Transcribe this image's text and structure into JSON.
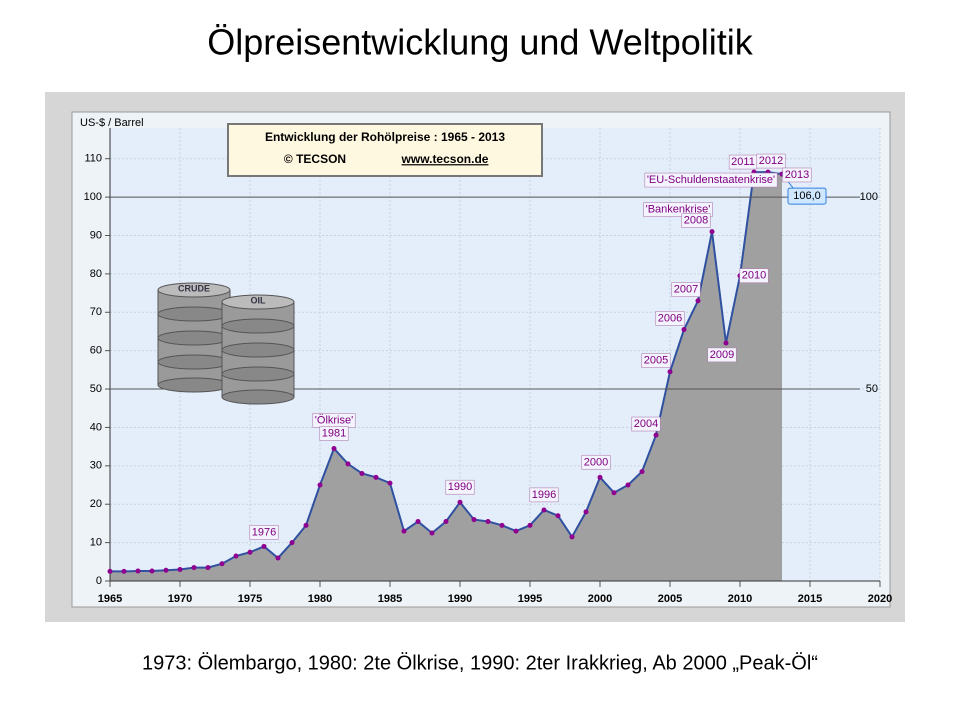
{
  "slide": {
    "title": "Ölpreisentwicklung und Weltpolitik",
    "caption": "1973: Ölembargo, 1980: 2te Ölkrise, 1990: 2ter Irakkrieg, Ab 2000 „Peak-Öl“"
  },
  "chart_data": {
    "type": "area",
    "title": "Entwicklung der Rohölpreise :  1965 - 2013",
    "subtitle": [
      "© TECSON",
      "www.tecson.de"
    ],
    "y_label": "US-$ / Barrel",
    "image_labels": [
      "CRUDE",
      "OIL"
    ],
    "x": [
      1965,
      1966,
      1967,
      1968,
      1969,
      1970,
      1971,
      1972,
      1973,
      1974,
      1975,
      1976,
      1977,
      1978,
      1979,
      1980,
      1981,
      1982,
      1983,
      1984,
      1985,
      1986,
      1987,
      1988,
      1989,
      1990,
      1991,
      1992,
      1993,
      1994,
      1995,
      1996,
      1997,
      1998,
      1999,
      2000,
      2001,
      2002,
      2003,
      2004,
      2005,
      2006,
      2007,
      2008,
      2009,
      2010,
      2011,
      2012,
      2013
    ],
    "values": [
      2.5,
      2.5,
      2.6,
      2.6,
      2.8,
      3.0,
      3.5,
      3.5,
      4.5,
      6.5,
      7.5,
      9,
      6,
      10,
      14.5,
      25,
      34.5,
      30.5,
      28,
      27,
      25.5,
      13,
      15.5,
      12.5,
      15.5,
      20.5,
      16,
      15.5,
      14.5,
      13,
      14.5,
      18.5,
      17,
      11.5,
      18,
      27,
      23,
      25,
      28.5,
      38,
      54.5,
      65.5,
      73,
      91,
      62,
      79.5,
      106.5,
      106.5,
      106
    ],
    "value_labels": [
      null,
      null,
      null,
      null,
      null,
      null,
      null,
      null,
      null,
      null,
      null,
      null,
      null,
      null,
      null,
      null,
      null,
      null,
      null,
      null,
      null,
      null,
      null,
      null,
      null,
      null,
      null,
      null,
      null,
      null,
      null,
      null,
      null,
      null,
      null,
      null,
      null,
      null,
      null,
      null,
      null,
      null,
      null,
      null,
      null,
      null,
      null,
      null,
      "106,0"
    ],
    "annotations": [
      "1976",
      "'Ölkrise'",
      "1981",
      "1990",
      "1996",
      "2000",
      "2004",
      "2005",
      "2006",
      "2007",
      "'Bankenkrise'",
      "2008",
      "2009",
      "2010",
      "2011",
      "'EU-Schuldenstaatenkrise'",
      "2012",
      "2013"
    ],
    "fill_color": "#a0a0a0",
    "line_color": "#3050a0",
    "marker_color": "#900090",
    "xlim": [
      1965,
      2020
    ],
    "xticks": [
      1965,
      1970,
      1975,
      1980,
      1985,
      1990,
      1995,
      2000,
      2005,
      2010,
      2015,
      2020
    ],
    "ylim": [
      0,
      118
    ],
    "yticks": [
      0,
      10,
      20,
      30,
      40,
      50,
      60,
      70,
      80,
      90,
      100,
      110
    ],
    "y2lim": [
      0,
      118
    ],
    "y2ticks": [
      50,
      100
    ],
    "grid": true
  }
}
